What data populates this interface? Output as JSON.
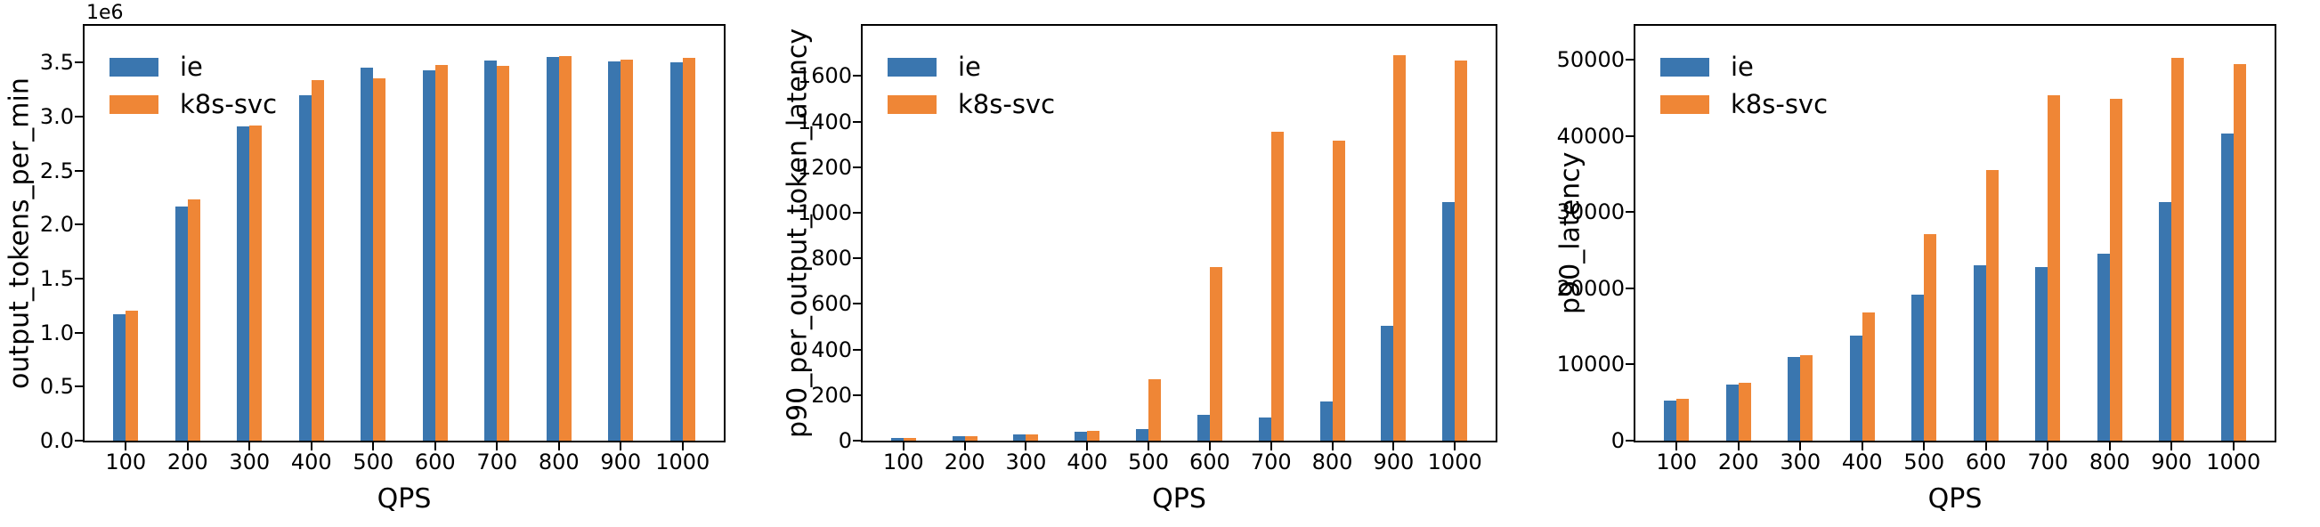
{
  "figure": {
    "background": "#ffffff",
    "axis_color": "#000000",
    "series_colors": {
      "ie": "#3a76af",
      "k8s-svc": "#ef8636"
    }
  },
  "chart_data": [
    {
      "type": "bar",
      "title": "",
      "ylabel": "output_tokens_per_min",
      "xlabel": "QPS",
      "offset_text": "1e6",
      "legend_position": "upper left",
      "grid": false,
      "categories": [
        100,
        200,
        300,
        400,
        500,
        600,
        700,
        800,
        900,
        1000
      ],
      "series": [
        {
          "name": "ie",
          "color": "#3a76af",
          "values": [
            1170000,
            2170000,
            2910000,
            3195000,
            3450000,
            3430000,
            3520000,
            3550000,
            3510000,
            3505000
          ]
        },
        {
          "name": "k8s-svc",
          "color": "#ef8636",
          "values": [
            1200000,
            2230000,
            2920000,
            3340000,
            3350000,
            3480000,
            3470000,
            3560000,
            3525000,
            3540000
          ]
        }
      ],
      "ylim": [
        0,
        3840000
      ],
      "yticks": [
        0,
        500000,
        1000000,
        1500000,
        2000000,
        2500000,
        3000000,
        3500000
      ],
      "ytick_labels": [
        "0.0",
        "0.5",
        "1.0",
        "1.5",
        "2.0",
        "2.5",
        "3.0",
        "3.5"
      ]
    },
    {
      "type": "bar",
      "title": "",
      "ylabel": "p90_per_output_token_latency",
      "xlabel": "QPS",
      "offset_text": null,
      "legend_position": "upper left",
      "grid": false,
      "categories": [
        100,
        200,
        300,
        400,
        500,
        600,
        700,
        800,
        900,
        1000
      ],
      "series": [
        {
          "name": "ie",
          "color": "#3a76af",
          "values": [
            10,
            18,
            27,
            38,
            52,
            112,
            103,
            170,
            505,
            1045
          ]
        },
        {
          "name": "k8s-svc",
          "color": "#ef8636",
          "values": [
            10,
            18,
            27,
            44,
            270,
            760,
            1355,
            1315,
            1690,
            1668
          ]
        }
      ],
      "ylim": [
        0,
        1820
      ],
      "yticks": [
        0,
        200,
        400,
        600,
        800,
        1000,
        1200,
        1400,
        1600
      ],
      "ytick_labels": [
        "0",
        "200",
        "400",
        "600",
        "800",
        "1000",
        "1200",
        "1400",
        "1600"
      ]
    },
    {
      "type": "bar",
      "title": "",
      "ylabel": "p90_latency",
      "xlabel": "QPS",
      "offset_text": null,
      "legend_position": "upper left",
      "grid": false,
      "categories": [
        100,
        200,
        300,
        400,
        500,
        600,
        700,
        800,
        900,
        1000
      ],
      "series": [
        {
          "name": "ie",
          "color": "#3a76af",
          "values": [
            5300,
            7400,
            11000,
            13800,
            19200,
            23000,
            22800,
            24600,
            31300,
            40300
          ]
        },
        {
          "name": "k8s-svc",
          "color": "#ef8636",
          "values": [
            5500,
            7650,
            11200,
            16800,
            27100,
            35600,
            45400,
            44900,
            50300,
            49500
          ]
        }
      ],
      "ylim": [
        0,
        54500
      ],
      "yticks": [
        0,
        10000,
        20000,
        30000,
        40000,
        50000
      ],
      "ytick_labels": [
        "0",
        "10000",
        "20000",
        "30000",
        "40000",
        "50000"
      ]
    }
  ]
}
